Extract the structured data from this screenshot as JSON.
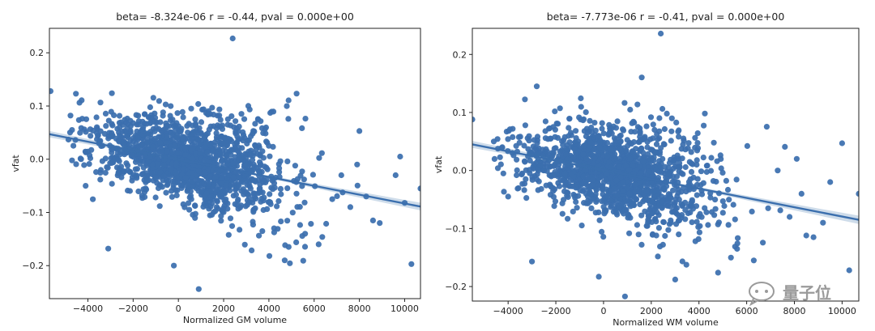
{
  "chart_data": [
    {
      "type": "scatter",
      "title": "beta= -8.324e-06 r = -0.44, pval = 0.000e+00",
      "xlabel": "Normalized GM volume",
      "ylabel": "vfat",
      "xlim": [
        -5700,
        10700
      ],
      "ylim": [
        -0.262,
        0.246
      ],
      "xticks": [
        -4000,
        -2000,
        0,
        2000,
        4000,
        6000,
        8000,
        10000
      ],
      "xtick_labels": [
        "−4000",
        "−2000",
        "0",
        "2000",
        "4000",
        "6000",
        "8000",
        "10000"
      ],
      "yticks": [
        -0.2,
        -0.1,
        0.0,
        0.1,
        0.2
      ],
      "ytick_labels": [
        "−0.2",
        "−0.1",
        "0.0",
        "0.1",
        "0.2"
      ],
      "grid": false,
      "regression": {
        "x": [
          -5700,
          10700
        ],
        "y": [
          0.047,
          -0.089
        ]
      },
      "cloud": {
        "x_center": 600,
        "x_spread": 2050,
        "y_center": -0.004,
        "y_spread": 0.036,
        "slope": -8.324e-06,
        "count": 1500,
        "seed": 11
      },
      "outliers": [
        {
          "x": 2400,
          "y": 0.227
        },
        {
          "x": -5650,
          "y": 0.128
        },
        {
          "x": -3100,
          "y": -0.168
        },
        {
          "x": -200,
          "y": -0.2
        },
        {
          "x": 900,
          "y": -0.244
        },
        {
          "x": 4700,
          "y": -0.19
        },
        {
          "x": 10300,
          "y": -0.197
        },
        {
          "x": 8000,
          "y": 0.053
        },
        {
          "x": 9800,
          "y": 0.005
        },
        {
          "x": 10700,
          "y": -0.055
        },
        {
          "x": 8900,
          "y": -0.12
        },
        {
          "x": 8600,
          "y": -0.115
        },
        {
          "x": 9600,
          "y": -0.03
        },
        {
          "x": 10000,
          "y": -0.082
        },
        {
          "x": 8300,
          "y": -0.07
        },
        {
          "x": 7200,
          "y": -0.03
        },
        {
          "x": 7600,
          "y": -0.09
        },
        {
          "x": 6800,
          "y": -0.075
        },
        {
          "x": -4700,
          "y": 0.055
        },
        {
          "x": -4300,
          "y": 0.0
        },
        {
          "x": -4100,
          "y": -0.05
        },
        {
          "x": 6200,
          "y": -0.16
        },
        {
          "x": 5600,
          "y": -0.14
        },
        {
          "x": 7900,
          "y": -0.01
        }
      ]
    },
    {
      "type": "scatter",
      "title": "beta= -7.773e-06 r = -0.41, pval = 0.000e+00",
      "xlabel": "Normalized WM volume",
      "ylabel": "vfat",
      "xlim": [
        -5500,
        10700
      ],
      "ylim": [
        -0.225,
        0.245
      ],
      "xticks": [
        -4000,
        -2000,
        0,
        2000,
        4000,
        6000,
        8000,
        10000
      ],
      "xtick_labels": [
        "−4000",
        "−2000",
        "0",
        "2000",
        "4000",
        "6000",
        "8000",
        "10000"
      ],
      "yticks": [
        -0.2,
        -0.1,
        0.0,
        0.1,
        0.2
      ],
      "ytick_labels": [
        "−0.2",
        "−0.1",
        "0.0",
        "0.1",
        "0.2"
      ],
      "grid": false,
      "regression": {
        "x": [
          -5500,
          10700
        ],
        "y": [
          0.045,
          -0.085
        ]
      },
      "cloud": {
        "x_center": 500,
        "x_spread": 2000,
        "y_center": -0.003,
        "y_spread": 0.035,
        "slope": -7.773e-06,
        "count": 1500,
        "seed": 29
      },
      "outliers": [
        {
          "x": 2400,
          "y": 0.236
        },
        {
          "x": -2800,
          "y": 0.145
        },
        {
          "x": -5500,
          "y": 0.088
        },
        {
          "x": -3000,
          "y": -0.157
        },
        {
          "x": -200,
          "y": -0.183
        },
        {
          "x": 900,
          "y": -0.217
        },
        {
          "x": 4800,
          "y": -0.176
        },
        {
          "x": 10300,
          "y": -0.172
        },
        {
          "x": 10000,
          "y": 0.047
        },
        {
          "x": 10700,
          "y": -0.04
        },
        {
          "x": 8800,
          "y": -0.115
        },
        {
          "x": 8500,
          "y": -0.112
        },
        {
          "x": 9500,
          "y": -0.02
        },
        {
          "x": 7800,
          "y": -0.08
        },
        {
          "x": 7300,
          "y": 0.0
        },
        {
          "x": 6900,
          "y": -0.065
        },
        {
          "x": 8300,
          "y": -0.04
        },
        {
          "x": -4600,
          "y": 0.05
        },
        {
          "x": -4200,
          "y": -0.005
        },
        {
          "x": -4000,
          "y": -0.045
        },
        {
          "x": 6300,
          "y": -0.155
        },
        {
          "x": 5600,
          "y": -0.135
        },
        {
          "x": 8100,
          "y": 0.02
        },
        {
          "x": 9200,
          "y": -0.09
        }
      ]
    }
  ],
  "watermark": {
    "text": "量子位"
  }
}
